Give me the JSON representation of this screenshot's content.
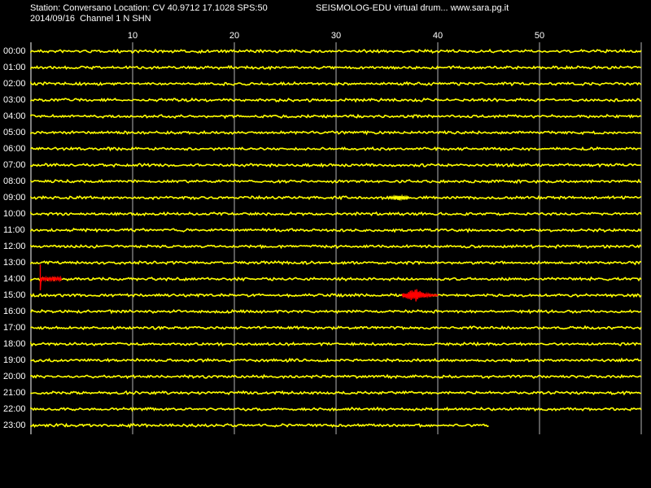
{
  "header": {
    "station_line": "Station: Conversano Location: CV 40.9712 17.1028 SPS:50",
    "brand_line": "SEISMOLOG-EDU virtual drum... www.sara.pg.it",
    "date_line": "2014/09/16  Channel 1 N SHN"
  },
  "minute_ticks": [
    "10",
    "20",
    "30",
    "40",
    "50"
  ],
  "hours": [
    "00:00",
    "01:00",
    "02:00",
    "03:00",
    "04:00",
    "05:00",
    "06:00",
    "07:00",
    "08:00",
    "09:00",
    "10:00",
    "11:00",
    "12:00",
    "13:00",
    "14:00",
    "15:00",
    "16:00",
    "17:00",
    "18:00",
    "19:00",
    "20:00",
    "21:00",
    "22:00",
    "23:00"
  ],
  "colors": {
    "background": "#000000",
    "trace": "#ffff00",
    "event": "#ff0000",
    "grid": "#ffffff"
  },
  "trace_end_minute_last_row": 45,
  "events": [
    {
      "hour": "09:00",
      "start_minute": 35.2,
      "end_minute": 37.2,
      "color": "#ffff00"
    },
    {
      "hour": "14:00",
      "start_minute": 1.0,
      "end_minute": 3.0,
      "color": "#ff0000"
    },
    {
      "hour": "15:00",
      "start_minute": 36.5,
      "end_minute": 40.0,
      "color": "#ff0000"
    }
  ]
}
